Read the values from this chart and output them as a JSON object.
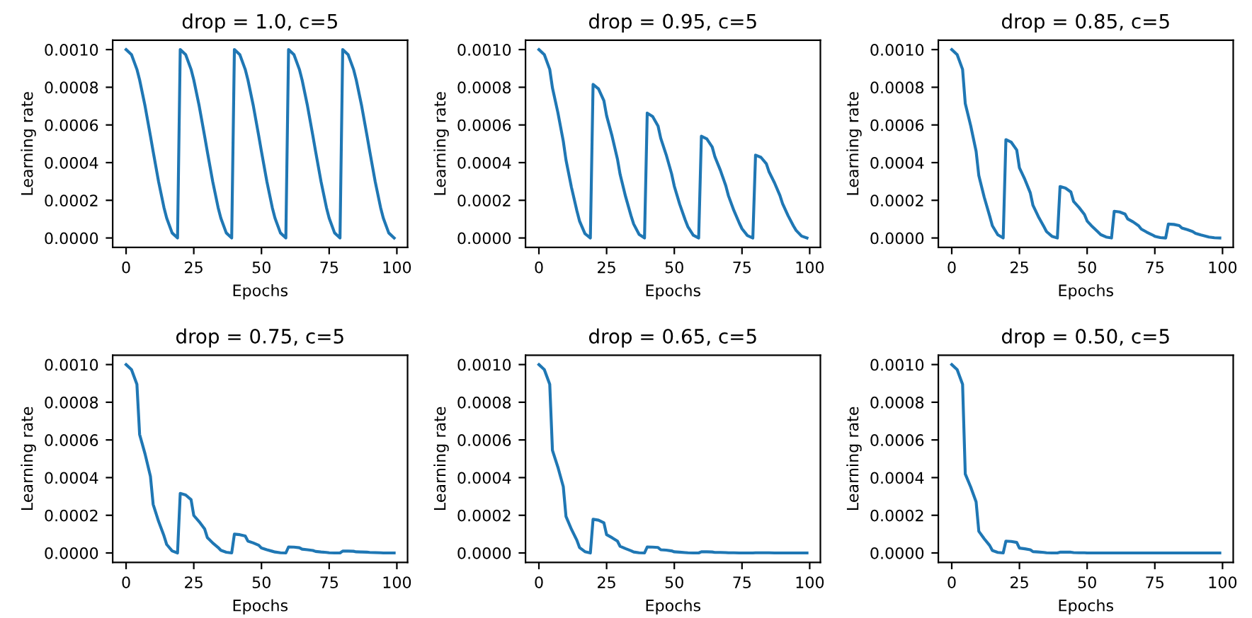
{
  "chart_data": [
    {
      "type": "line",
      "title": "drop = 1.0, c=5",
      "xlabel": "Epochs",
      "ylabel": "Learning rate",
      "xlim": [
        -4.95,
        103.95
      ],
      "xticks": [
        0,
        25,
        50,
        75,
        100
      ],
      "ylim": [
        -5e-05,
        0.00105
      ],
      "yticks": [
        {
          "value": 0,
          "label": "0.0000"
        },
        {
          "value": 0.0002,
          "label": "0.0002"
        },
        {
          "value": 0.0004,
          "label": "0.0004"
        },
        {
          "value": 0.0006,
          "label": "0.0006"
        },
        {
          "value": 0.0008,
          "label": "0.0008"
        },
        {
          "value": 0.001,
          "label": "0.0010"
        }
      ],
      "x": [
        0,
        2,
        4,
        5,
        7,
        9,
        10,
        12,
        14,
        15,
        17,
        19,
        20,
        22,
        24,
        25,
        27,
        29,
        30,
        32,
        34,
        35,
        37,
        39,
        40,
        42,
        44,
        45,
        47,
        49,
        50,
        52,
        54,
        55,
        57,
        59,
        60,
        62,
        64,
        65,
        67,
        69,
        70,
        72,
        74,
        75,
        77,
        79,
        80,
        82,
        84,
        85,
        87,
        89,
        90,
        92,
        94,
        95,
        97,
        99
      ],
      "series": [
        {
          "color": "#1f77b4",
          "values": [
            0.001,
            0.000973,
            0.000895,
            0.000839,
            0.000701,
            0.000541,
            0.000459,
            0.000299,
            0.000161,
            0.000105,
            2.7e-05,
            0.0,
            0.001,
            0.000973,
            0.000895,
            0.000839,
            0.000701,
            0.000541,
            0.000459,
            0.000299,
            0.000161,
            0.000105,
            2.7e-05,
            0.0,
            0.001,
            0.000973,
            0.000895,
            0.000839,
            0.000701,
            0.000541,
            0.000459,
            0.000299,
            0.000161,
            0.000105,
            2.7e-05,
            0.0,
            0.001,
            0.000973,
            0.000895,
            0.000839,
            0.000701,
            0.000541,
            0.000459,
            0.000299,
            0.000161,
            0.000105,
            2.7e-05,
            0.0,
            0.001,
            0.000973,
            0.000895,
            0.000839,
            0.000701,
            0.000541,
            0.000459,
            0.000299,
            0.000161,
            0.000105,
            2.7e-05,
            0.0
          ]
        }
      ]
    },
    {
      "type": "line",
      "title": "drop = 0.95, c=5",
      "xlabel": "Epochs",
      "ylabel": "Learning rate",
      "xlim": [
        -4.95,
        103.95
      ],
      "xticks": [
        0,
        25,
        50,
        75,
        100
      ],
      "ylim": [
        -5e-05,
        0.00105
      ],
      "yticks": [
        {
          "value": 0,
          "label": "0.0000"
        },
        {
          "value": 0.0002,
          "label": "0.0002"
        },
        {
          "value": 0.0004,
          "label": "0.0004"
        },
        {
          "value": 0.0006,
          "label": "0.0006"
        },
        {
          "value": 0.0008,
          "label": "0.0008"
        },
        {
          "value": 0.001,
          "label": "0.0010"
        }
      ],
      "x": [
        0,
        2,
        4,
        5,
        7,
        9,
        10,
        12,
        14,
        15,
        17,
        19,
        20,
        22,
        24,
        25,
        27,
        29,
        30,
        32,
        34,
        35,
        37,
        39,
        40,
        42,
        44,
        45,
        47,
        49,
        50,
        52,
        54,
        55,
        57,
        59,
        60,
        62,
        64,
        65,
        67,
        69,
        70,
        72,
        74,
        75,
        77,
        79,
        80,
        82,
        84,
        85,
        87,
        89,
        90,
        92,
        94,
        95,
        97,
        99
      ],
      "series": [
        {
          "color": "#1f77b4",
          "values": [
            0.001,
            0.000973,
            0.000895,
            0.000797,
            0.000666,
            0.000514,
            0.000414,
            0.00027,
            0.000146,
            9e-05,
            2.3e-05,
            0.0,
            0.000815,
            0.000792,
            0.000729,
            0.000649,
            0.000542,
            0.000419,
            0.000337,
            0.00022,
            0.000119,
            7.4e-05,
            1.9e-05,
            0.0,
            0.000663,
            0.000645,
            0.000594,
            0.000529,
            0.000442,
            0.000341,
            0.000275,
            0.000179,
            9.7e-05,
            6e-05,
            1.5e-05,
            0.0,
            0.00054,
            0.000526,
            0.000483,
            0.000431,
            0.00036,
            0.000278,
            0.000224,
            0.000146,
            7.9e-05,
            4.9e-05,
            1.3e-05,
            0.0,
            0.00044,
            0.000428,
            0.000394,
            0.000351,
            0.000293,
            0.000226,
            0.000182,
            0.000119,
            6.4e-05,
            4e-05,
            1e-05,
            0.0
          ]
        }
      ]
    },
    {
      "type": "line",
      "title": "drop = 0.85, c=5",
      "xlabel": "Epochs",
      "ylabel": "Learning rate",
      "xlim": [
        -4.95,
        103.95
      ],
      "xticks": [
        0,
        25,
        50,
        75,
        100
      ],
      "ylim": [
        -5e-05,
        0.00105
      ],
      "yticks": [
        {
          "value": 0,
          "label": "0.0000"
        },
        {
          "value": 0.0002,
          "label": "0.0002"
        },
        {
          "value": 0.0004,
          "label": "0.0004"
        },
        {
          "value": 0.0006,
          "label": "0.0006"
        },
        {
          "value": 0.0008,
          "label": "0.0008"
        },
        {
          "value": 0.001,
          "label": "0.0010"
        }
      ],
      "x": [
        0,
        2,
        4,
        5,
        7,
        9,
        10,
        12,
        14,
        15,
        17,
        19,
        20,
        22,
        24,
        25,
        27,
        29,
        30,
        32,
        34,
        35,
        37,
        39,
        40,
        42,
        44,
        45,
        47,
        49,
        50,
        52,
        54,
        55,
        57,
        59,
        60,
        62,
        64,
        65,
        67,
        69,
        70,
        72,
        74,
        75,
        77,
        79,
        80,
        82,
        84,
        85,
        87,
        89,
        90,
        92,
        94,
        95,
        97,
        99
      ],
      "series": [
        {
          "color": "#1f77b4",
          "values": [
            0.001,
            0.000973,
            0.000895,
            0.000713,
            0.000596,
            0.00046,
            0.000331,
            0.000216,
            0.000117,
            6.5e-05,
            1.7e-05,
            0.0,
            0.000522,
            0.000508,
            0.000467,
            0.000372,
            0.000311,
            0.00024,
            0.000173,
            0.000113,
            6.1e-05,
            3.4e-05,
            9e-06,
            0.0,
            0.000273,
            0.000265,
            0.000244,
            0.000194,
            0.000162,
            0.000125,
            9e-05,
            5.9e-05,
            3.2e-05,
            1.8e-05,
            5e-06,
            0.0,
            0.000142,
            0.000138,
            0.000127,
            0.000101,
            8.5e-05,
            6.5e-05,
            4.7e-05,
            3.1e-05,
            1.7e-05,
            9e-06,
            2e-06,
            0.0,
            7.4e-05,
            7.2e-05,
            6.6e-05,
            5.3e-05,
            4.4e-05,
            3.4e-05,
            2.5e-05,
            1.6e-05,
            9e-06,
            5e-06,
            1e-06,
            0.0
          ]
        }
      ]
    },
    {
      "type": "line",
      "title": "drop = 0.75, c=5",
      "xlabel": "Epochs",
      "ylabel": "Learning rate",
      "xlim": [
        -4.95,
        103.95
      ],
      "xticks": [
        0,
        25,
        50,
        75,
        100
      ],
      "ylim": [
        -5e-05,
        0.00105
      ],
      "yticks": [
        {
          "value": 0,
          "label": "0.0000"
        },
        {
          "value": 0.0002,
          "label": "0.0002"
        },
        {
          "value": 0.0004,
          "label": "0.0004"
        },
        {
          "value": 0.0006,
          "label": "0.0006"
        },
        {
          "value": 0.0008,
          "label": "0.0008"
        },
        {
          "value": 0.001,
          "label": "0.0010"
        }
      ],
      "x": [
        0,
        2,
        4,
        5,
        7,
        9,
        10,
        12,
        14,
        15,
        17,
        19,
        20,
        22,
        24,
        25,
        27,
        29,
        30,
        32,
        34,
        35,
        37,
        39,
        40,
        42,
        44,
        45,
        47,
        49,
        50,
        52,
        54,
        55,
        57,
        59,
        60,
        62,
        64,
        65,
        67,
        69,
        70,
        72,
        74,
        75,
        77,
        79,
        80,
        82,
        84,
        85,
        87,
        89,
        90,
        92,
        94,
        95,
        97,
        99
      ],
      "series": [
        {
          "color": "#1f77b4",
          "values": [
            0.001,
            0.000973,
            0.000895,
            0.000629,
            0.000526,
            0.000406,
            0.000258,
            0.000168,
            9.1e-05,
            4.5e-05,
            1.1e-05,
            0.0,
            0.000316,
            0.000308,
            0.000283,
            0.000199,
            0.000166,
            0.000128,
            8.2e-05,
            5.3e-05,
            2.9e-05,
            1.4e-05,
            4e-06,
            0.0,
            0.0001,
            9.7e-05,
            9e-05,
            6.3e-05,
            5.3e-05,
            4.1e-05,
            2.6e-05,
            1.7e-05,
            9e-06,
            5e-06,
            1e-06,
            0.0,
            3.2e-05,
            3.1e-05,
            2.8e-05,
            2e-05,
            1.7e-05,
            1.3e-05,
            8e-06,
            5e-06,
            3e-06,
            1e-06,
            0.0,
            0.0,
            1e-05,
            1e-05,
            9e-06,
            6e-06,
            5e-06,
            4e-06,
            3e-06,
            2e-06,
            1e-06,
            0.0,
            0.0,
            0.0
          ]
        }
      ]
    },
    {
      "type": "line",
      "title": "drop = 0.65, c=5",
      "xlabel": "Epochs",
      "ylabel": "Learning rate",
      "xlim": [
        -4.95,
        103.95
      ],
      "xticks": [
        0,
        25,
        50,
        75,
        100
      ],
      "ylim": [
        -5e-05,
        0.00105
      ],
      "yticks": [
        {
          "value": 0,
          "label": "0.0000"
        },
        {
          "value": 0.0002,
          "label": "0.0002"
        },
        {
          "value": 0.0004,
          "label": "0.0004"
        },
        {
          "value": 0.0006,
          "label": "0.0006"
        },
        {
          "value": 0.0008,
          "label": "0.0008"
        },
        {
          "value": 0.001,
          "label": "0.0010"
        }
      ],
      "x": [
        0,
        2,
        4,
        5,
        7,
        9,
        10,
        12,
        14,
        15,
        17,
        19,
        20,
        22,
        24,
        25,
        27,
        29,
        30,
        32,
        34,
        35,
        37,
        39,
        40,
        42,
        44,
        45,
        47,
        49,
        50,
        52,
        54,
        55,
        57,
        59,
        60,
        62,
        64,
        65,
        67,
        69,
        70,
        72,
        74,
        75,
        77,
        79,
        80,
        82,
        84,
        85,
        87,
        89,
        90,
        92,
        94,
        95,
        97,
        99
      ],
      "series": [
        {
          "color": "#1f77b4",
          "values": [
            0.001,
            0.000973,
            0.000895,
            0.000545,
            0.000456,
            0.000352,
            0.000194,
            0.000126,
            6.8e-05,
            2.9e-05,
            7e-06,
            0.0,
            0.000179,
            0.000174,
            0.00016,
            9.7e-05,
            8.1e-05,
            6.3e-05,
            3.5e-05,
            2.3e-05,
            1.2e-05,
            5e-06,
            1e-06,
            0.0,
            3.2e-05,
            3.1e-05,
            2.9e-05,
            1.7e-05,
            1.5e-05,
            1.1e-05,
            6e-06,
            4e-06,
            2e-06,
            1e-06,
            0.0,
            0.0,
            6e-06,
            6e-06,
            5e-06,
            3e-06,
            3e-06,
            2e-06,
            1e-06,
            1e-06,
            0.0,
            0.0,
            0.0,
            0.0,
            1e-06,
            1e-06,
            1e-06,
            1e-06,
            0.0,
            0.0,
            0.0,
            0.0,
            0.0,
            0.0,
            0.0,
            0.0
          ]
        }
      ]
    },
    {
      "type": "line",
      "title": "drop = 0.50, c=5",
      "xlabel": "Epochs",
      "ylabel": "Learning rate",
      "xlim": [
        -4.95,
        103.95
      ],
      "xticks": [
        0,
        25,
        50,
        75,
        100
      ],
      "ylim": [
        -5e-05,
        0.00105
      ],
      "yticks": [
        {
          "value": 0,
          "label": "0.0000"
        },
        {
          "value": 0.0002,
          "label": "0.0002"
        },
        {
          "value": 0.0004,
          "label": "0.0004"
        },
        {
          "value": 0.0006,
          "label": "0.0006"
        },
        {
          "value": 0.0008,
          "label": "0.0008"
        },
        {
          "value": 0.001,
          "label": "0.0010"
        }
      ],
      "x": [
        0,
        2,
        4,
        5,
        7,
        9,
        10,
        12,
        14,
        15,
        17,
        19,
        20,
        22,
        24,
        25,
        27,
        29,
        30,
        32,
        34,
        35,
        37,
        39,
        40,
        42,
        44,
        45,
        47,
        49,
        50,
        52,
        54,
        55,
        57,
        59,
        60,
        62,
        64,
        65,
        67,
        69,
        70,
        72,
        74,
        75,
        77,
        79,
        80,
        82,
        84,
        85,
        87,
        89,
        90,
        92,
        94,
        95,
        97,
        99
      ],
      "series": [
        {
          "color": "#1f77b4",
          "values": [
            0.001,
            0.000973,
            0.000895,
            0.000419,
            0.00035,
            0.000271,
            0.000115,
            7.5e-05,
            4e-05,
            1.3e-05,
            3e-06,
            0.0,
            6.3e-05,
            6.1e-05,
            5.6e-05,
            2.6e-05,
            2.2e-05,
            1.7e-05,
            7e-06,
            5e-06,
            3e-06,
            1e-06,
            0.0,
            0.0,
            4e-06,
            4e-06,
            4e-06,
            2e-06,
            1e-06,
            1e-06,
            0.0,
            0.0,
            0.0,
            0.0,
            0.0,
            0.0,
            0.0,
            0.0,
            0.0,
            0.0,
            0.0,
            0.0,
            0.0,
            0.0,
            0.0,
            0.0,
            0.0,
            0.0,
            0.0,
            0.0,
            0.0,
            0.0,
            0.0,
            0.0,
            0.0,
            0.0,
            0.0,
            0.0,
            0.0,
            0.0
          ]
        }
      ]
    }
  ]
}
